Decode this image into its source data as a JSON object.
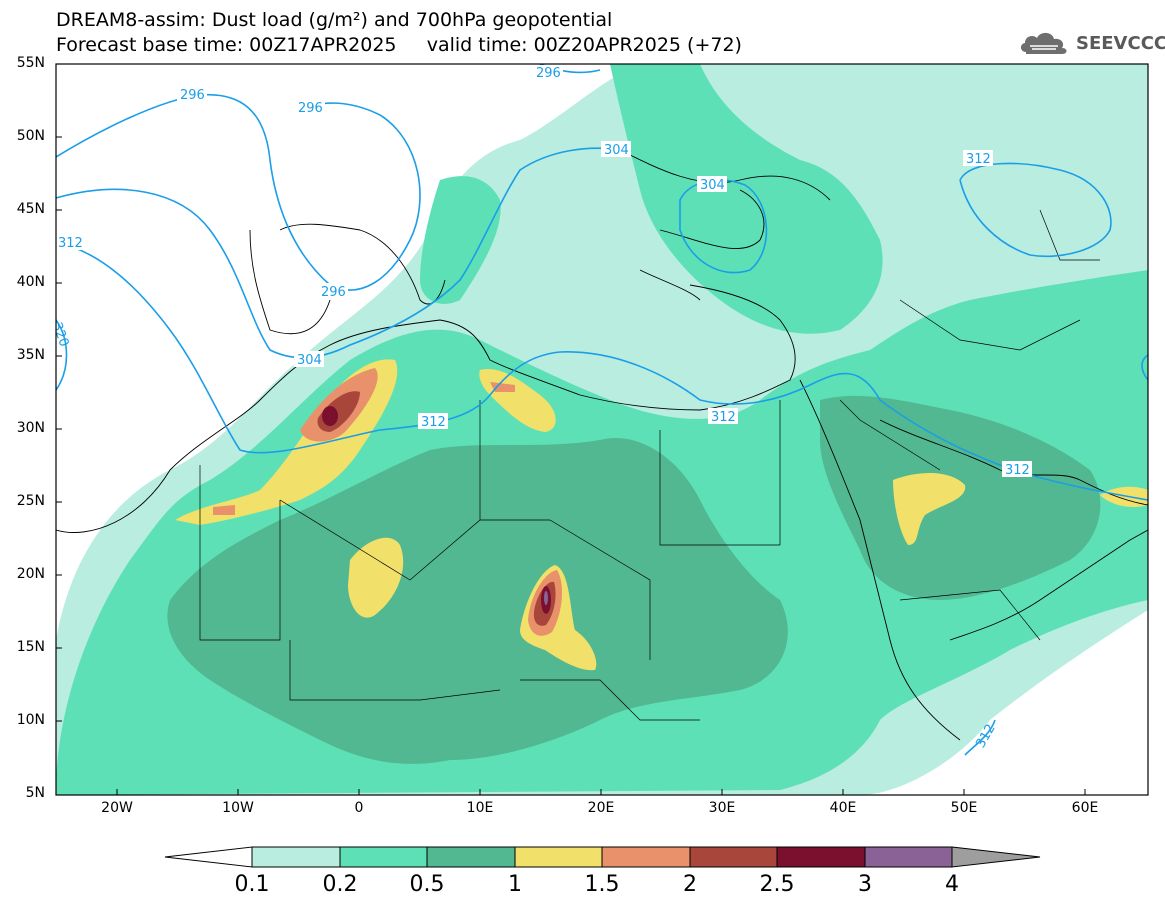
{
  "title_line1": "DREAM8-assim: Dust load (g/m²) and 700hPa geopotential",
  "title_line2": "Forecast base time: 00Z17APR2025     valid time: 00Z20APR2025 (+72)",
  "logo_text": "SEEVCCC",
  "latitude_labels": [
    "55N",
    "50N",
    "45N",
    "40N",
    "35N",
    "30N",
    "25N",
    "20N",
    "15N",
    "10N",
    "5N"
  ],
  "longitude_labels": [
    "20W",
    "10W",
    "0",
    "10E",
    "20E",
    "30E",
    "40E",
    "50E",
    "60E"
  ],
  "contour_labels": [
    "296",
    "296",
    "296",
    "296",
    "304",
    "304",
    "304",
    "312",
    "312",
    "312",
    "312",
    "312",
    "312",
    "320"
  ],
  "colorbar": {
    "labels": [
      "0.1",
      "0.2",
      "0.5",
      "1",
      "1.5",
      "2",
      "2.5",
      "3",
      "4"
    ],
    "colors": [
      "#ffffff",
      "#b8ede0",
      "#5ee0b6",
      "#52b891",
      "#f1e06a",
      "#e8916a",
      "#a8463c",
      "#7a0f2e",
      "#8b6296",
      "#9e9e9e"
    ]
  },
  "colors": {
    "lvl1": "#b8ede0",
    "lvl2": "#5ee0b6",
    "lvl3": "#52b891",
    "lvl4": "#f1e06a",
    "lvl5": "#e8916a",
    "lvl6": "#a8463c",
    "lvl7": "#7a0f2e",
    "lvl8": "#8b6296",
    "contour": "#1a9ee8",
    "coast": "#000000"
  }
}
